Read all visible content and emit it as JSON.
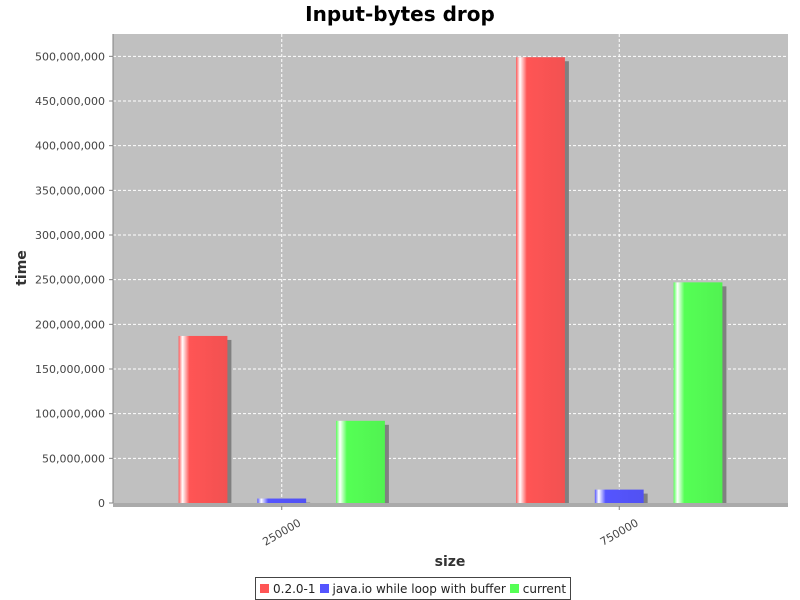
{
  "chart_data": {
    "type": "bar",
    "title": "Input-bytes drop",
    "xlabel": "size",
    "ylabel": "time",
    "categories": [
      "250000",
      "750000"
    ],
    "series": [
      {
        "name": "0.2.0-1",
        "color": "#ff5555",
        "values": [
          187000000,
          499000000
        ]
      },
      {
        "name": "java.io while loop with buffer",
        "color": "#5555ff",
        "values": [
          5000000,
          15000000
        ]
      },
      {
        "name": "current",
        "color": "#55ff55",
        "values": [
          92000000,
          247000000
        ]
      }
    ],
    "ylim": [
      0,
      525000000
    ],
    "yticks": [
      0,
      50000000,
      100000000,
      150000000,
      200000000,
      250000000,
      300000000,
      350000000,
      400000000,
      450000000,
      500000000
    ],
    "ytick_labels": [
      "0",
      "50,000,000",
      "100,000,000",
      "150,000,000",
      "200,000,000",
      "250,000,000",
      "300,000,000",
      "350,000,000",
      "400,000,000",
      "450,000,000",
      "500,000,000"
    ],
    "grid": true,
    "background": "#c0c0c0",
    "legend_position": "bottom"
  }
}
